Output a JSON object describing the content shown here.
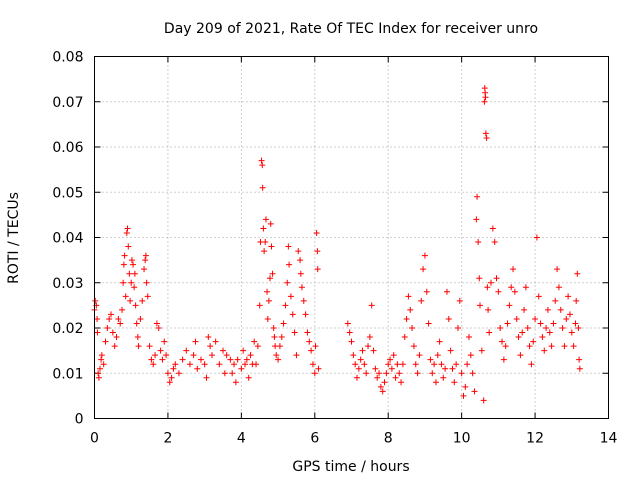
{
  "chart_data": {
    "type": "scatter",
    "title": "Day 209 of 2021, Rate Of TEC Index for receiver unro",
    "xlabel": "GPS time / hours",
    "ylabel": "ROTI / TECUs",
    "xlim": [
      0,
      14
    ],
    "ylim": [
      0,
      0.08
    ],
    "x_ticks": [
      "0",
      "2",
      "4",
      "6",
      "8",
      "10",
      "12",
      "14"
    ],
    "y_ticks": [
      "0",
      "0.01",
      "0.02",
      "0.03",
      "0.04",
      "0.05",
      "0.06",
      "0.07",
      "0.08"
    ],
    "grid": true,
    "marker": "+",
    "color": "#ff0000",
    "series": [
      {
        "points": [
          [
            0.0,
            0.024
          ],
          [
            0.02,
            0.026
          ],
          [
            0.05,
            0.025
          ],
          [
            0.07,
            0.022
          ],
          [
            0.08,
            0.019
          ],
          [
            0.1,
            0.01
          ],
          [
            0.12,
            0.009
          ],
          [
            0.15,
            0.011
          ],
          [
            0.18,
            0.013
          ],
          [
            0.2,
            0.014
          ],
          [
            0.25,
            0.012
          ],
          [
            0.3,
            0.017
          ],
          [
            0.35,
            0.02
          ],
          [
            0.4,
            0.022
          ],
          [
            0.45,
            0.023
          ],
          [
            0.5,
            0.019
          ],
          [
            0.55,
            0.016
          ],
          [
            0.6,
            0.018
          ],
          [
            0.65,
            0.022
          ],
          [
            0.7,
            0.021
          ],
          [
            0.75,
            0.024
          ],
          [
            0.78,
            0.03
          ],
          [
            0.8,
            0.034
          ],
          [
            0.82,
            0.036
          ],
          [
            0.85,
            0.027
          ],
          [
            0.88,
            0.041
          ],
          [
            0.9,
            0.042
          ],
          [
            0.92,
            0.038
          ],
          [
            0.95,
            0.032
          ],
          [
            0.97,
            0.026
          ],
          [
            1.0,
            0.03
          ],
          [
            1.02,
            0.035
          ],
          [
            1.05,
            0.034
          ],
          [
            1.08,
            0.029
          ],
          [
            1.1,
            0.032
          ],
          [
            1.12,
            0.025
          ],
          [
            1.15,
            0.021
          ],
          [
            1.18,
            0.018
          ],
          [
            1.2,
            0.016
          ],
          [
            1.25,
            0.022
          ],
          [
            1.3,
            0.026
          ],
          [
            1.35,
            0.033
          ],
          [
            1.38,
            0.035
          ],
          [
            1.4,
            0.036
          ],
          [
            1.42,
            0.03
          ],
          [
            1.45,
            0.027
          ],
          [
            1.5,
            0.016
          ],
          [
            1.55,
            0.013
          ],
          [
            1.6,
            0.012
          ],
          [
            1.65,
            0.014
          ],
          [
            1.7,
            0.021
          ],
          [
            1.75,
            0.02
          ],
          [
            1.8,
            0.015
          ],
          [
            1.85,
            0.013
          ],
          [
            1.9,
            0.017
          ],
          [
            1.95,
            0.014
          ],
          [
            2.0,
            0.01
          ],
          [
            2.05,
            0.008
          ],
          [
            2.1,
            0.009
          ],
          [
            2.15,
            0.011
          ],
          [
            2.2,
            0.012
          ],
          [
            2.3,
            0.01
          ],
          [
            2.4,
            0.013
          ],
          [
            2.5,
            0.015
          ],
          [
            2.6,
            0.012
          ],
          [
            2.7,
            0.014
          ],
          [
            2.75,
            0.017
          ],
          [
            2.8,
            0.011
          ],
          [
            2.9,
            0.013
          ],
          [
            3.0,
            0.012
          ],
          [
            3.05,
            0.009
          ],
          [
            3.1,
            0.018
          ],
          [
            3.15,
            0.016
          ],
          [
            3.2,
            0.014
          ],
          [
            3.3,
            0.017
          ],
          [
            3.4,
            0.012
          ],
          [
            3.5,
            0.015
          ],
          [
            3.55,
            0.01
          ],
          [
            3.6,
            0.014
          ],
          [
            3.7,
            0.013
          ],
          [
            3.75,
            0.01
          ],
          [
            3.8,
            0.012
          ],
          [
            3.85,
            0.008
          ],
          [
            3.9,
            0.013
          ],
          [
            4.0,
            0.011
          ],
          [
            4.05,
            0.015
          ],
          [
            4.1,
            0.012
          ],
          [
            4.15,
            0.013
          ],
          [
            4.2,
            0.009
          ],
          [
            4.25,
            0.014
          ],
          [
            4.3,
            0.012
          ],
          [
            4.35,
            0.017
          ],
          [
            4.4,
            0.012
          ],
          [
            4.45,
            0.016
          ],
          [
            4.5,
            0.025
          ],
          [
            4.52,
            0.039
          ],
          [
            4.55,
            0.057
          ],
          [
            4.57,
            0.056
          ],
          [
            4.58,
            0.051
          ],
          [
            4.6,
            0.042
          ],
          [
            4.62,
            0.037
          ],
          [
            4.65,
            0.039
          ],
          [
            4.67,
            0.044
          ],
          [
            4.7,
            0.028
          ],
          [
            4.72,
            0.022
          ],
          [
            4.75,
            0.026
          ],
          [
            4.78,
            0.031
          ],
          [
            4.8,
            0.043
          ],
          [
            4.82,
            0.038
          ],
          [
            4.85,
            0.032
          ],
          [
            4.88,
            0.02
          ],
          [
            4.9,
            0.018
          ],
          [
            4.92,
            0.016
          ],
          [
            4.95,
            0.014
          ],
          [
            5.0,
            0.013
          ],
          [
            5.05,
            0.016
          ],
          [
            5.1,
            0.018
          ],
          [
            5.15,
            0.021
          ],
          [
            5.2,
            0.025
          ],
          [
            5.25,
            0.03
          ],
          [
            5.28,
            0.038
          ],
          [
            5.3,
            0.034
          ],
          [
            5.35,
            0.027
          ],
          [
            5.4,
            0.023
          ],
          [
            5.45,
            0.019
          ],
          [
            5.5,
            0.014
          ],
          [
            5.55,
            0.037
          ],
          [
            5.6,
            0.035
          ],
          [
            5.62,
            0.032
          ],
          [
            5.65,
            0.029
          ],
          [
            5.7,
            0.026
          ],
          [
            5.75,
            0.023
          ],
          [
            5.8,
            0.019
          ],
          [
            5.85,
            0.017
          ],
          [
            5.9,
            0.015
          ],
          [
            5.95,
            0.012
          ],
          [
            6.0,
            0.01
          ],
          [
            6.02,
            0.016
          ],
          [
            6.05,
            0.041
          ],
          [
            6.07,
            0.037
          ],
          [
            6.08,
            0.033
          ],
          [
            6.1,
            0.011
          ],
          [
            6.9,
            0.021
          ],
          [
            6.95,
            0.019
          ],
          [
            7.0,
            0.017
          ],
          [
            7.05,
            0.014
          ],
          [
            7.1,
            0.012
          ],
          [
            7.15,
            0.009
          ],
          [
            7.2,
            0.011
          ],
          [
            7.25,
            0.013
          ],
          [
            7.3,
            0.015
          ],
          [
            7.35,
            0.012
          ],
          [
            7.4,
            0.01
          ],
          [
            7.45,
            0.016
          ],
          [
            7.5,
            0.018
          ],
          [
            7.55,
            0.025
          ],
          [
            7.6,
            0.015
          ],
          [
            7.65,
            0.011
          ],
          [
            7.7,
            0.009
          ],
          [
            7.75,
            0.01
          ],
          [
            7.8,
            0.007
          ],
          [
            7.85,
            0.006
          ],
          [
            7.9,
            0.008
          ],
          [
            7.95,
            0.01
          ],
          [
            8.0,
            0.012
          ],
          [
            8.05,
            0.013
          ],
          [
            8.1,
            0.011
          ],
          [
            8.15,
            0.014
          ],
          [
            8.2,
            0.009
          ],
          [
            8.25,
            0.012
          ],
          [
            8.3,
            0.01
          ],
          [
            8.35,
            0.008
          ],
          [
            8.4,
            0.012
          ],
          [
            8.45,
            0.018
          ],
          [
            8.5,
            0.022
          ],
          [
            8.55,
            0.027
          ],
          [
            8.6,
            0.024
          ],
          [
            8.65,
            0.02
          ],
          [
            8.7,
            0.016
          ],
          [
            8.75,
            0.012
          ],
          [
            8.8,
            0.01
          ],
          [
            8.85,
            0.014
          ],
          [
            8.9,
            0.026
          ],
          [
            8.95,
            0.033
          ],
          [
            9.0,
            0.036
          ],
          [
            9.05,
            0.028
          ],
          [
            9.1,
            0.021
          ],
          [
            9.15,
            0.013
          ],
          [
            9.2,
            0.01
          ],
          [
            9.25,
            0.012
          ],
          [
            9.3,
            0.008
          ],
          [
            9.35,
            0.014
          ],
          [
            9.4,
            0.017
          ],
          [
            9.45,
            0.012
          ],
          [
            9.5,
            0.009
          ],
          [
            9.55,
            0.011
          ],
          [
            9.6,
            0.028
          ],
          [
            9.65,
            0.022
          ],
          [
            9.7,
            0.015
          ],
          [
            9.75,
            0.011
          ],
          [
            9.8,
            0.008
          ],
          [
            9.85,
            0.012
          ],
          [
            9.9,
            0.02
          ],
          [
            9.95,
            0.026
          ],
          [
            10.0,
            0.01
          ],
          [
            10.05,
            0.005
          ],
          [
            10.1,
            0.007
          ],
          [
            10.15,
            0.012
          ],
          [
            10.2,
            0.018
          ],
          [
            10.25,
            0.014
          ],
          [
            10.3,
            0.01
          ],
          [
            10.35,
            0.006
          ],
          [
            10.4,
            0.044
          ],
          [
            10.42,
            0.049
          ],
          [
            10.45,
            0.039
          ],
          [
            10.48,
            0.031
          ],
          [
            10.5,
            0.025
          ],
          [
            10.55,
            0.015
          ],
          [
            10.6,
            0.004
          ],
          [
            10.62,
            0.07
          ],
          [
            10.63,
            0.073
          ],
          [
            10.64,
            0.072
          ],
          [
            10.65,
            0.071
          ],
          [
            10.66,
            0.063
          ],
          [
            10.68,
            0.062
          ],
          [
            10.7,
            0.029
          ],
          [
            10.72,
            0.024
          ],
          [
            10.75,
            0.019
          ],
          [
            10.8,
            0.03
          ],
          [
            10.85,
            0.042
          ],
          [
            10.9,
            0.039
          ],
          [
            10.95,
            0.031
          ],
          [
            11.0,
            0.028
          ],
          [
            11.05,
            0.02
          ],
          [
            11.1,
            0.017
          ],
          [
            11.15,
            0.013
          ],
          [
            11.2,
            0.016
          ],
          [
            11.25,
            0.021
          ],
          [
            11.3,
            0.025
          ],
          [
            11.35,
            0.029
          ],
          [
            11.4,
            0.033
          ],
          [
            11.45,
            0.028
          ],
          [
            11.5,
            0.022
          ],
          [
            11.55,
            0.018
          ],
          [
            11.6,
            0.014
          ],
          [
            11.65,
            0.019
          ],
          [
            11.7,
            0.024
          ],
          [
            11.75,
            0.029
          ],
          [
            11.8,
            0.02
          ],
          [
            11.85,
            0.016
          ],
          [
            11.9,
            0.012
          ],
          [
            11.95,
            0.017
          ],
          [
            12.0,
            0.022
          ],
          [
            12.05,
            0.04
          ],
          [
            12.1,
            0.027
          ],
          [
            12.15,
            0.021
          ],
          [
            12.2,
            0.018
          ],
          [
            12.25,
            0.015
          ],
          [
            12.3,
            0.02
          ],
          [
            12.35,
            0.024
          ],
          [
            12.4,
            0.019
          ],
          [
            12.45,
            0.016
          ],
          [
            12.5,
            0.021
          ],
          [
            12.55,
            0.026
          ],
          [
            12.6,
            0.033
          ],
          [
            12.65,
            0.029
          ],
          [
            12.7,
            0.024
          ],
          [
            12.75,
            0.02
          ],
          [
            12.8,
            0.016
          ],
          [
            12.85,
            0.022
          ],
          [
            12.9,
            0.027
          ],
          [
            12.95,
            0.023
          ],
          [
            13.0,
            0.019
          ],
          [
            13.05,
            0.016
          ],
          [
            13.1,
            0.021
          ],
          [
            13.12,
            0.026
          ],
          [
            13.15,
            0.032
          ],
          [
            13.18,
            0.02
          ],
          [
            13.2,
            0.013
          ],
          [
            13.22,
            0.011
          ]
        ]
      }
    ]
  }
}
